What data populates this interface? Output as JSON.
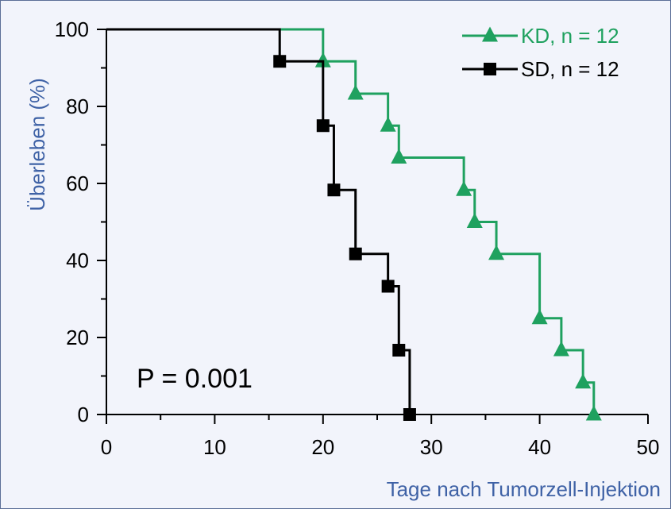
{
  "chart_data": {
    "type": "line",
    "subtype": "kaplan-meier step",
    "xlabel": "Tage nach Tumorzell-Injektion",
    "ylabel": "Überleben (%)",
    "xlim": [
      0,
      50
    ],
    "ylim": [
      0,
      100
    ],
    "x_ticks": [
      "0",
      "10",
      "20",
      "30",
      "40",
      "50"
    ],
    "y_ticks": [
      "0",
      "20",
      "40",
      "60",
      "80",
      "100"
    ],
    "grid": false,
    "legend_position": "top-right",
    "annotation": "P = 0.001",
    "axis_title_color": "#3f62a6",
    "series": [
      {
        "name": "KD, n = 12",
        "color": "#1fa15f",
        "marker": "triangle",
        "x": [
          20,
          23,
          26,
          27,
          33,
          34,
          36,
          40,
          42,
          44,
          45
        ],
        "y": [
          91.7,
          83.3,
          75,
          66.7,
          58.3,
          50,
          41.7,
          25,
          16.7,
          8.3,
          0
        ]
      },
      {
        "name": "SD, n = 12",
        "color": "#000000",
        "marker": "square",
        "x": [
          16,
          20,
          21,
          23,
          26,
          27,
          28
        ],
        "y": [
          91.7,
          75,
          58.3,
          41.7,
          33.3,
          16.7,
          0
        ]
      }
    ]
  }
}
